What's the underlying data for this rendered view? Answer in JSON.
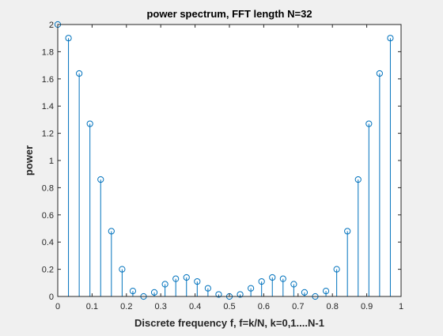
{
  "chart_data": {
    "type": "stem",
    "title": "power spectrum, FFT length N=32",
    "xlabel": "Discrete frequency f, f=k/N, k=0,1....N-1",
    "ylabel": "power",
    "xlim": [
      0,
      1
    ],
    "ylim": [
      0,
      2
    ],
    "xticks": [
      0,
      0.1,
      0.2,
      0.3,
      0.4,
      0.5,
      0.6,
      0.7,
      0.8,
      0.9,
      1
    ],
    "xtick_labels": [
      "0",
      "0.1",
      "0.2",
      "0.3",
      "0.4",
      "0.5",
      "0.6",
      "0.7",
      "0.8",
      "0.9",
      "1"
    ],
    "yticks": [
      0,
      0.2,
      0.4,
      0.6,
      0.8,
      1,
      1.2,
      1.4,
      1.6,
      1.8,
      2
    ],
    "ytick_labels": [
      "0",
      "0.2",
      "0.4",
      "0.6",
      "0.8",
      "1",
      "1.2",
      "1.4",
      "1.6",
      "1.8",
      "2"
    ],
    "grid": false,
    "color": "#0072bd",
    "x": [
      0,
      0.03125,
      0.0625,
      0.09375,
      0.125,
      0.15625,
      0.1875,
      0.21875,
      0.25,
      0.28125,
      0.3125,
      0.34375,
      0.375,
      0.40625,
      0.4375,
      0.46875,
      0.5,
      0.53125,
      0.5625,
      0.59375,
      0.625,
      0.65625,
      0.6875,
      0.71875,
      0.75,
      0.78125,
      0.8125,
      0.84375,
      0.875,
      0.90625,
      0.9375,
      0.96875
    ],
    "values": [
      2.0,
      1.9,
      1.64,
      1.27,
      0.86,
      0.48,
      0.2,
      0.04,
      0.0,
      0.03,
      0.09,
      0.13,
      0.14,
      0.11,
      0.06,
      0.015,
      0.0,
      0.015,
      0.06,
      0.11,
      0.14,
      0.13,
      0.09,
      0.03,
      0.0,
      0.04,
      0.2,
      0.48,
      0.86,
      1.27,
      1.64,
      1.9
    ]
  }
}
